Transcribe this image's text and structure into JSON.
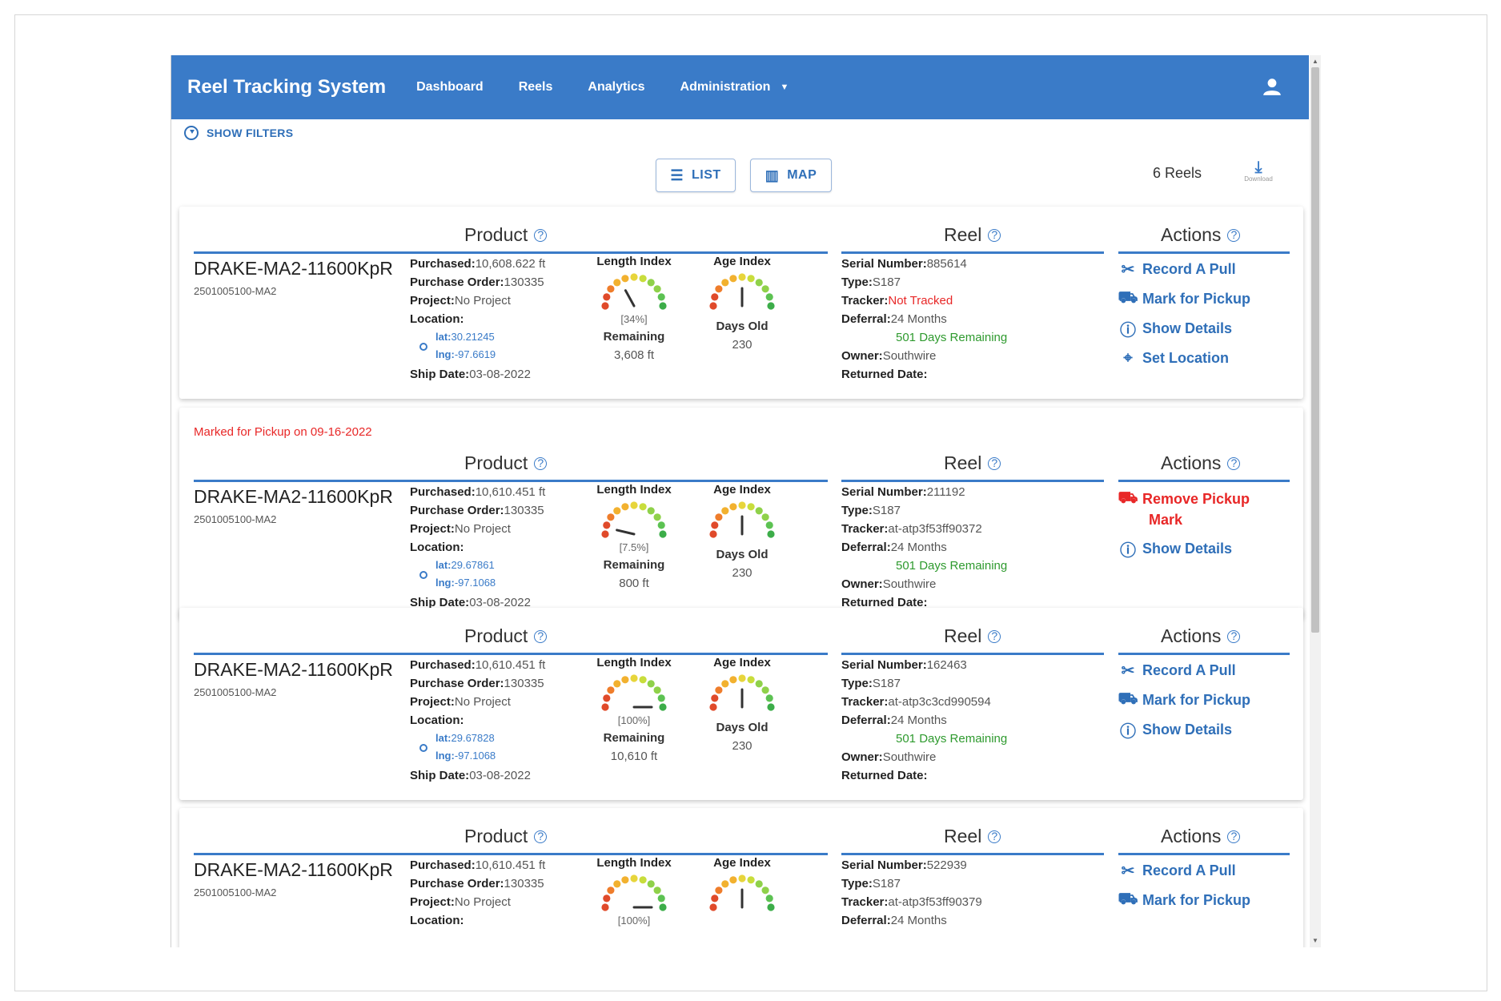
{
  "app": {
    "title": "Reel Tracking System",
    "nav": [
      "Dashboard",
      "Reels",
      "Analytics",
      "Administration"
    ],
    "user_icon": "user-icon"
  },
  "toolbar": {
    "filters_label": "SHOW FILTERS",
    "list_label": "LIST",
    "map_label": "MAP",
    "reel_count": "6 Reels",
    "download_label": "Download"
  },
  "labels": {
    "product": "Product",
    "reel": "Reel",
    "actions": "Actions",
    "purchased": "Purchased:",
    "purchase_order": "Purchase Order:",
    "project": "Project:",
    "location": "Location:",
    "lat": "lat:",
    "lng": "lng:",
    "ship_date": "Ship Date:",
    "length_index": "Length Index",
    "age_index": "Age Index",
    "remaining": "Remaining",
    "days_old": "Days Old",
    "serial_number": "Serial Number:",
    "type": "Type:",
    "tracker": "Tracker:",
    "deferral": "Deferral:",
    "owner": "Owner:",
    "returned_date": "Returned Date:",
    "record_pull": "Record A Pull",
    "mark_pickup": "Mark for Pickup",
    "show_details": "Show Details",
    "set_location": "Set Location",
    "remove_pickup_1": "Remove Pickup",
    "remove_pickup_2": "Mark"
  },
  "reels": [
    {
      "name": "DRAKE-MA2-11600KpR",
      "code": "2501005100-MA2",
      "purchased": "10,608.622 ft",
      "purchase_order": "130335",
      "project": "No Project",
      "lat": "30.21245",
      "lng": "-97.6619",
      "ship_date": "03-08-2022",
      "length_pct_label": "[34%]",
      "length_pct": 34,
      "remaining": "3,608 ft",
      "days_old": "230",
      "age_frac": 0.5,
      "serial": "885614",
      "type": "S187",
      "tracker": "Not Tracked",
      "deferral": "24 Months",
      "days_remaining": "501 Days Remaining",
      "owner": "Southwire",
      "returned_date": "",
      "marked_note": ""
    },
    {
      "name": "DRAKE-MA2-11600KpR",
      "code": "2501005100-MA2",
      "purchased": "10,610.451 ft",
      "purchase_order": "130335",
      "project": "No Project",
      "lat": "29.67861",
      "lng": "-97.1068",
      "ship_date": "03-08-2022",
      "length_pct_label": "[7.5%]",
      "length_pct": 7.5,
      "remaining": "800 ft",
      "days_old": "230",
      "age_frac": 0.5,
      "serial": "211192",
      "type": "S187",
      "tracker": "at-atp3f53ff90372",
      "deferral": "24 Months",
      "days_remaining": "501 Days Remaining",
      "owner": "Southwire",
      "returned_date": "",
      "marked_note": "Marked for Pickup on 09-16-2022"
    },
    {
      "name": "DRAKE-MA2-11600KpR",
      "code": "2501005100-MA2",
      "purchased": "10,610.451 ft",
      "purchase_order": "130335",
      "project": "No Project",
      "lat": "29.67828",
      "lng": "-97.1068",
      "ship_date": "03-08-2022",
      "length_pct_label": "[100%]",
      "length_pct": 100,
      "remaining": "10,610 ft",
      "days_old": "230",
      "age_frac": 0.5,
      "serial": "162463",
      "type": "S187",
      "tracker": "at-atp3c3cd990594",
      "deferral": "24 Months",
      "days_remaining": "501 Days Remaining",
      "owner": "Southwire",
      "returned_date": "",
      "marked_note": ""
    },
    {
      "name": "DRAKE-MA2-11600KpR",
      "code": "2501005100-MA2",
      "purchased": "10,610.451 ft",
      "purchase_order": "130335",
      "project": "No Project",
      "length_pct_label": "[100%]",
      "length_pct": 100,
      "age_frac": 0.5,
      "serial": "522939",
      "type": "S187",
      "tracker": "at-atp3f53ff90379",
      "deferral": "24 Months"
    }
  ],
  "colors": {
    "primary": "#3a7bc8",
    "alert": "#e82727",
    "success": "#2e9a2e"
  }
}
